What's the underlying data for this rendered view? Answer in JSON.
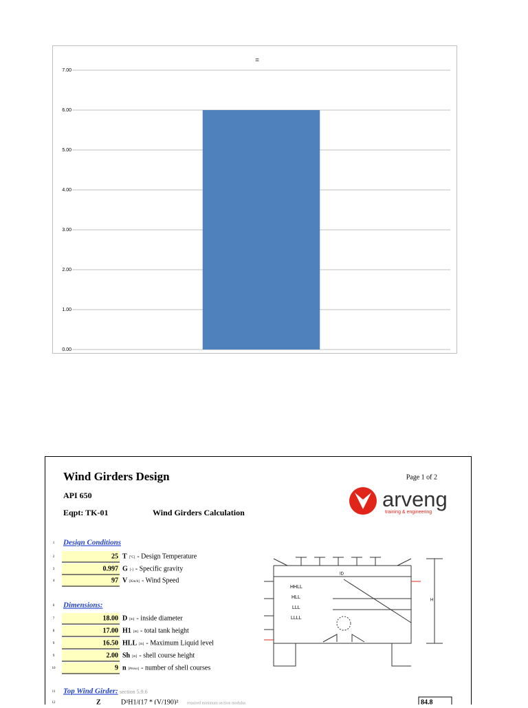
{
  "chart_data": {
    "type": "bar",
    "title": "=",
    "categories": [
      null
    ],
    "values": [
      6
    ],
    "color": "#4f81bd",
    "ylim": [
      0,
      7
    ],
    "yticks": [
      {
        "value": 0,
        "label": "0.00"
      },
      {
        "value": 1,
        "label": "1.00"
      },
      {
        "value": 2,
        "label": "2.00"
      },
      {
        "value": 3,
        "label": "3.00"
      },
      {
        "value": 4,
        "label": "4.00"
      },
      {
        "value": 5,
        "label": "5.00"
      },
      {
        "value": 6,
        "label": "6.00"
      },
      {
        "value": 7,
        "label": "7.00"
      }
    ],
    "grid": true
  },
  "document": {
    "title": "Wind Girders Design",
    "page": "Page  1 of 2",
    "standard": "API 650",
    "equipment": "Eqpt: TK-01",
    "subtitle": "Wind Girders Calculation",
    "logo": {
      "name": "arveng",
      "tagline": "training & engineering"
    },
    "rows": [
      {
        "n": "1",
        "heading": "Design Conditions"
      },
      {
        "n": "2",
        "value": "25",
        "symbol": "T",
        "unit": "[°C]",
        "desc": "- Design Temperature"
      },
      {
        "n": "3",
        "value": "0.997",
        "symbol": "G",
        "unit": "[-]",
        "desc": "- Specific gravity"
      },
      {
        "n": "4",
        "value": "97",
        "symbol": "V",
        "unit": "[Km/h]",
        "desc": "- Wind Speed"
      },
      {
        "n": "6",
        "heading": "Dimensions:"
      },
      {
        "n": "7",
        "value": "18.00",
        "symbol": "D",
        "unit": "[m]",
        "desc": "- inside diameter"
      },
      {
        "n": "8",
        "value": "17.00",
        "symbol": "H1",
        "unit": "[m]",
        "desc": "- total tank height"
      },
      {
        "n": "9",
        "value": "16.50",
        "symbol": "HLL",
        "unit": "[m]",
        "desc": "- Maximum Liquid level"
      },
      {
        "n": "9",
        "value": "2.00",
        "symbol": "Sh",
        "unit": "[m]",
        "desc": "- shell course height"
      },
      {
        "n": "10",
        "value": "9",
        "symbol": "n",
        "unit": "[#rows]",
        "desc": "- number of shell courses"
      },
      {
        "n": "11",
        "heading": "Top Wind Girder:",
        "note": "section 5.9.6"
      },
      {
        "n": "12",
        "symbol": "Z",
        "formula": "D²H1/(17 * (V/190)²",
        "note": "required minimum section modulus",
        "result": "84.8"
      }
    ],
    "diagram": {
      "labels": [
        "HHLL",
        "HLL",
        "LLL",
        "LLLL",
        "ID",
        "H"
      ]
    }
  }
}
